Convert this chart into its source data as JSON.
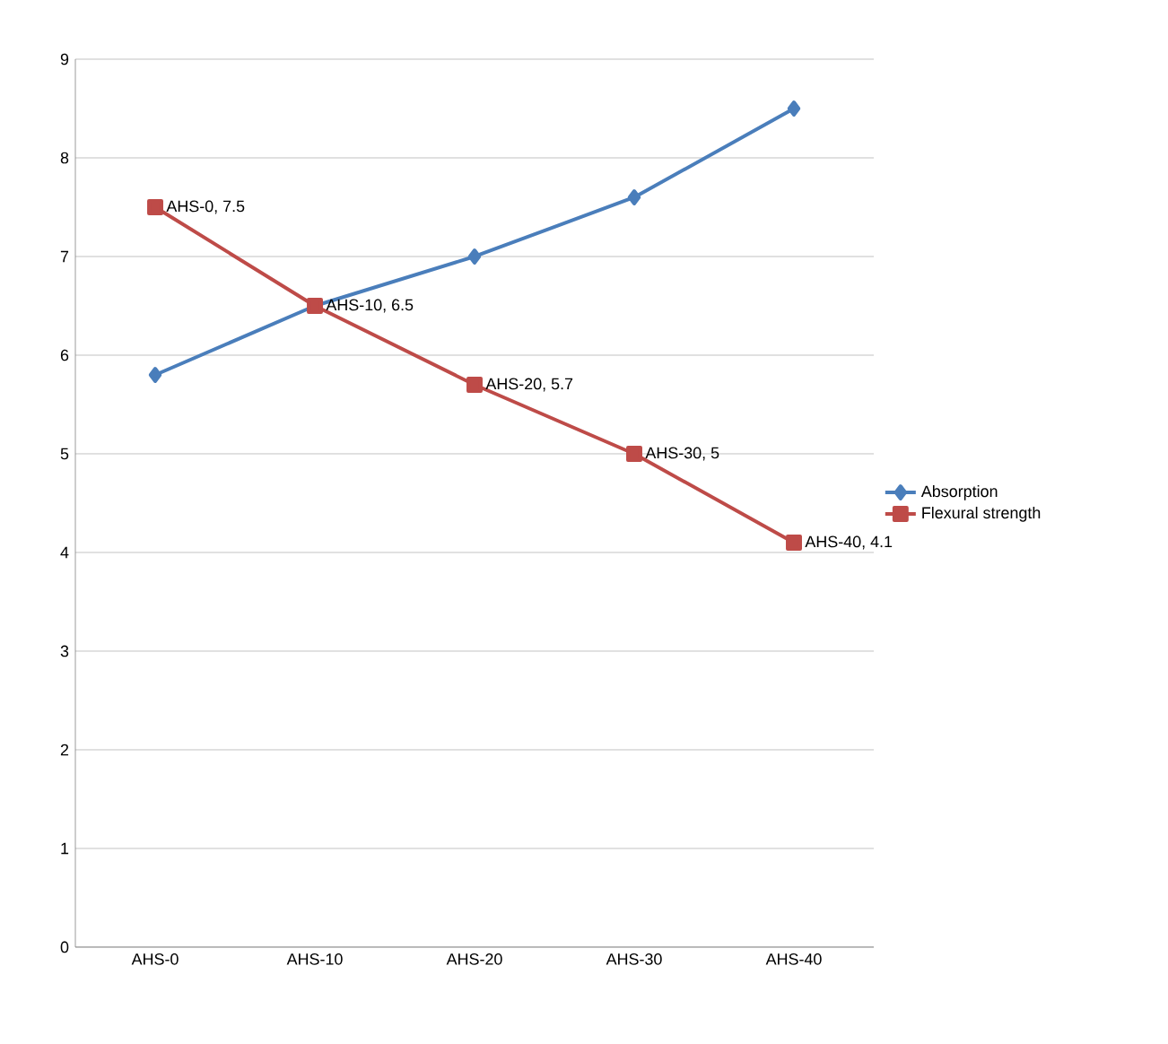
{
  "chart_data": {
    "type": "line",
    "categories": [
      "AHS-0",
      "AHS-10",
      "AHS-20",
      "AHS-30",
      "AHS-40"
    ],
    "series": [
      {
        "name": "Absorption",
        "color": "#4a7ebb",
        "marker": "diamond",
        "values": [
          5.8,
          6.5,
          7.0,
          7.6,
          8.5
        ]
      },
      {
        "name": "Flexural strength",
        "color": "#be4b48",
        "marker": "square",
        "values": [
          7.5,
          6.5,
          5.7,
          5.0,
          4.1
        ],
        "value_labels": [
          "AHS-0, 7.5",
          "AHS-10, 6.5",
          "AHS-20, 5.7",
          "AHS-30, 5",
          "AHS-40, 4.1"
        ]
      }
    ],
    "ylim": [
      0,
      9
    ],
    "yticks": [
      0,
      1,
      2,
      3,
      4,
      5,
      6,
      7,
      8,
      9
    ],
    "grid": "y",
    "legend": "right"
  }
}
